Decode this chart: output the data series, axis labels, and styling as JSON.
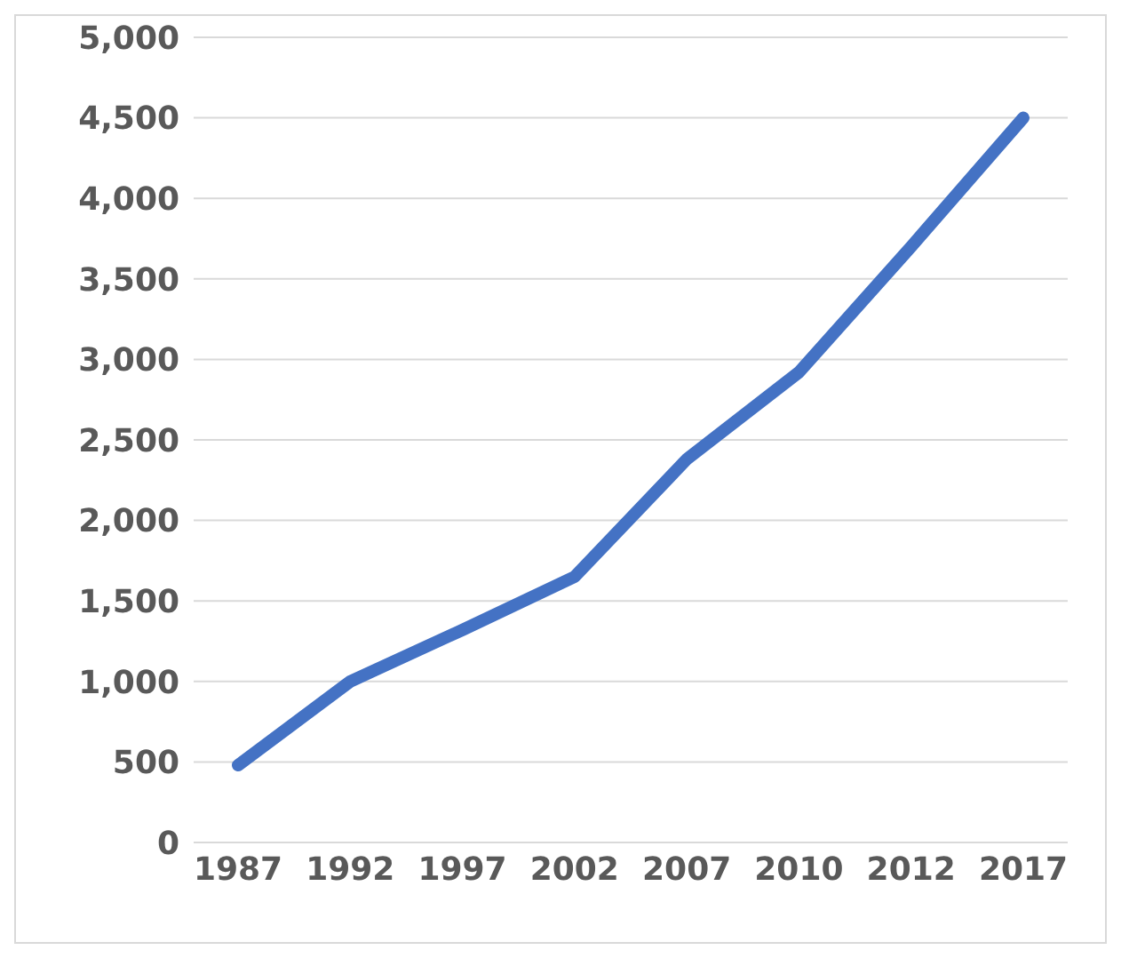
{
  "chart_data": {
    "type": "line",
    "categories": [
      "1987",
      "1992",
      "1997",
      "2002",
      "2007",
      "2010",
      "2012",
      "2017"
    ],
    "series": [
      {
        "color": "#4472c4",
        "values": [
          480,
          1000,
          1320,
          1650,
          2380,
          2920,
          3700,
          4500
        ]
      }
    ],
    "ylim": [
      0,
      5000
    ],
    "yticks": [
      0,
      500,
      {
        "value": 1000,
        "label": "1,000"
      },
      {
        "value": 1500,
        "label": "1,500"
      },
      {
        "value": 2000,
        "label": "2,000"
      },
      {
        "value": 2500,
        "label": "2,500"
      },
      {
        "value": 3000,
        "label": "3,000"
      },
      {
        "value": 3500,
        "label": "3,500"
      },
      {
        "value": 4000,
        "label": "4,000"
      },
      {
        "value": 4500,
        "label": "4,500"
      },
      {
        "value": 5000,
        "label": "5,000"
      }
    ],
    "grid": "y",
    "legend": false,
    "marker": "none"
  }
}
